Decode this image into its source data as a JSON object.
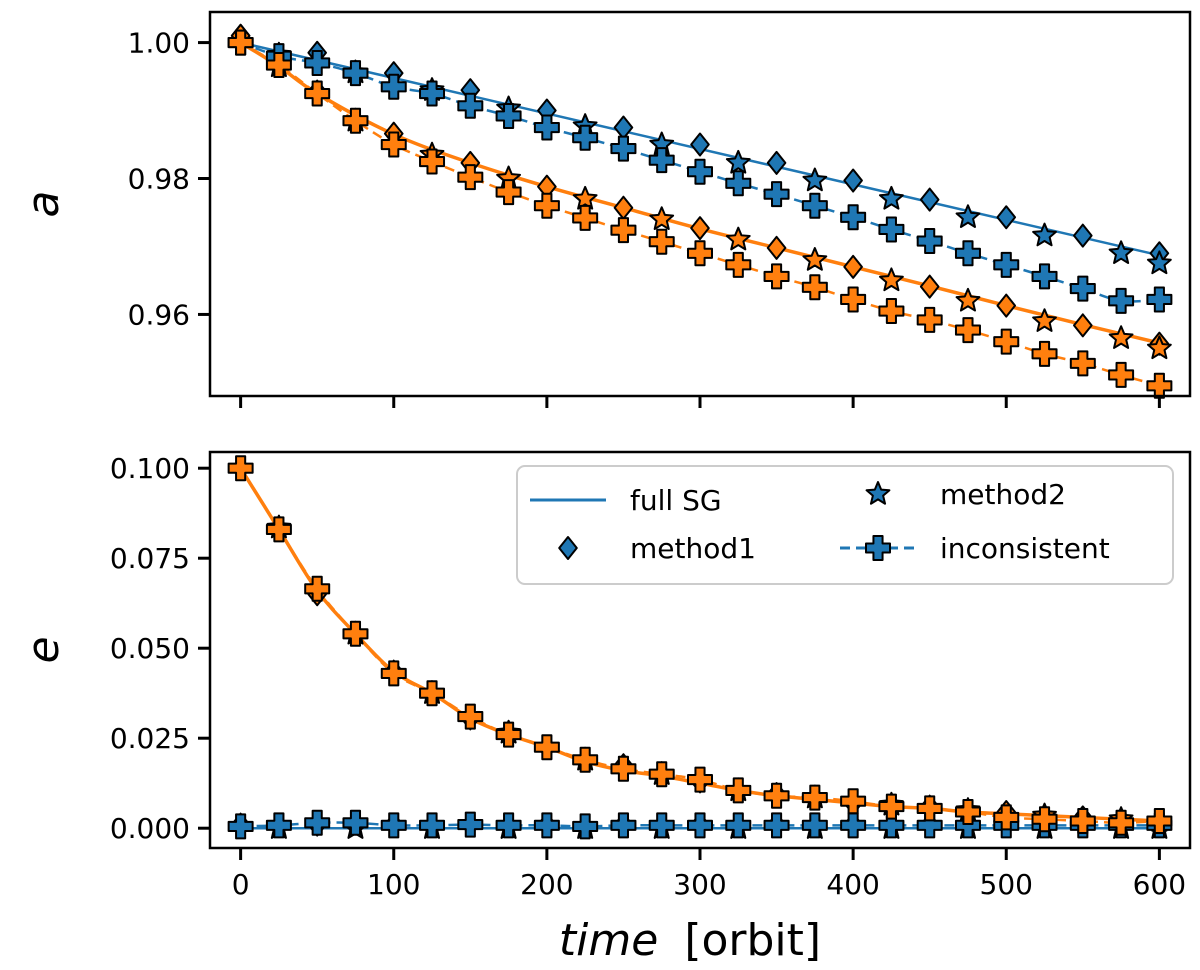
{
  "colors": {
    "blue": "#1f77b4",
    "orange": "#ff7f0e",
    "edge": "#000000"
  },
  "chart_data": [
    {
      "type": "line",
      "ylabel": "a",
      "xlim": [
        -20,
        620
      ],
      "ylim": [
        0.948,
        1.0045
      ],
      "yticks": [
        0.96,
        0.98,
        1.0
      ],
      "ytick_labels": [
        "0.96",
        "0.98",
        "1.00"
      ],
      "xticks": [
        0,
        100,
        200,
        300,
        400,
        500,
        600
      ],
      "show_xtick_labels": false,
      "series": [
        {
          "name": "full SG",
          "color": "blue",
          "style": "line",
          "x": [
            0,
            600
          ],
          "y": [
            1.0,
            0.9687
          ]
        },
        {
          "name": "full SG",
          "color": "orange",
          "style": "curve",
          "x": [
            0,
            25,
            50,
            100,
            150,
            200,
            250,
            300,
            350,
            400,
            450,
            500,
            550,
            600
          ],
          "y": [
            1.0,
            0.9965,
            0.9925,
            0.9865,
            0.9823,
            0.9788,
            0.9757,
            0.9726,
            0.9698,
            0.967,
            0.9642,
            0.9613,
            0.9585,
            0.9558
          ]
        },
        {
          "name": "method1",
          "color": "blue",
          "marker": "diamond",
          "x": [
            0,
            50,
            100,
            150,
            200,
            250,
            300,
            350,
            400,
            450,
            500,
            550,
            600
          ],
          "y": [
            1.001,
            0.9985,
            0.9955,
            0.993,
            0.99,
            0.9875,
            0.985,
            0.9823,
            0.9797,
            0.9769,
            0.9743,
            0.9716,
            0.969
          ]
        },
        {
          "name": "method2",
          "color": "blue",
          "marker": "star",
          "x": [
            25,
            75,
            125,
            175,
            225,
            275,
            325,
            375,
            425,
            475,
            525,
            575,
            600
          ],
          "y": [
            0.9982,
            0.9956,
            0.993,
            0.9903,
            0.9877,
            0.985,
            0.9823,
            0.9797,
            0.977,
            0.9743,
            0.9716,
            0.969,
            0.9675
          ]
        },
        {
          "name": "inconsistent",
          "color": "blue",
          "marker": "plus",
          "x": [
            0,
            25,
            50,
            75,
            100,
            125,
            150,
            175,
            200,
            225,
            250,
            275,
            300,
            325,
            350,
            375,
            400,
            425,
            450,
            475,
            500,
            525,
            550,
            575,
            600
          ],
          "y": [
            1.0,
            0.998,
            0.997,
            0.9955,
            0.9935,
            0.9925,
            0.9907,
            0.9892,
            0.9875,
            0.986,
            0.9844,
            0.9827,
            0.981,
            0.9793,
            0.9777,
            0.976,
            0.9743,
            0.9725,
            0.9708,
            0.969,
            0.9673,
            0.9656,
            0.9638,
            0.962,
            0.9622
          ]
        },
        {
          "name": "method1",
          "color": "orange",
          "marker": "diamond",
          "x": [
            0,
            50,
            100,
            150,
            200,
            250,
            300,
            350,
            400,
            450,
            500,
            550,
            600
          ],
          "y": [
            1.001,
            0.9928,
            0.9866,
            0.9823,
            0.9788,
            0.9757,
            0.9727,
            0.9698,
            0.967,
            0.9641,
            0.9613,
            0.9584,
            0.9557
          ]
        },
        {
          "name": "method2",
          "color": "orange",
          "marker": "star",
          "x": [
            25,
            75,
            125,
            175,
            225,
            275,
            325,
            375,
            425,
            475,
            525,
            575,
            600
          ],
          "y": [
            0.9965,
            0.9885,
            0.9835,
            0.98,
            0.977,
            0.974,
            0.971,
            0.968,
            0.965,
            0.962,
            0.959,
            0.9565,
            0.955
          ]
        },
        {
          "name": "inconsistent",
          "color": "orange",
          "marker": "plus",
          "x": [
            0,
            25,
            50,
            75,
            100,
            125,
            150,
            175,
            200,
            225,
            250,
            275,
            300,
            325,
            350,
            375,
            400,
            425,
            450,
            475,
            500,
            525,
            550,
            575,
            600
          ],
          "y": [
            1.0,
            0.9967,
            0.9925,
            0.9885,
            0.985,
            0.9825,
            0.9802,
            0.978,
            0.976,
            0.9742,
            0.9724,
            0.9707,
            0.969,
            0.9673,
            0.9656,
            0.964,
            0.9622,
            0.9605,
            0.9592,
            0.9577,
            0.956,
            0.9542,
            0.9528,
            0.9511,
            0.9495
          ]
        }
      ]
    },
    {
      "type": "line",
      "ylabel": "e",
      "xlabel_italic": "time",
      "xlabel_unit": "[orbit]",
      "xlim": [
        -20,
        620
      ],
      "ylim": [
        -0.0055,
        0.1045
      ],
      "yticks": [
        0.0,
        0.025,
        0.05,
        0.075,
        0.1
      ],
      "ytick_labels": [
        "0.000",
        "0.025",
        "0.050",
        "0.075",
        "0.100"
      ],
      "xticks": [
        0,
        100,
        200,
        300,
        400,
        500,
        600
      ],
      "xtick_labels": [
        "0",
        "100",
        "200",
        "300",
        "400",
        "500",
        "600"
      ],
      "legend": {
        "placement": "upper-right",
        "entries": [
          "full SG",
          "method1",
          "method2",
          "inconsistent"
        ]
      },
      "series": [
        {
          "name": "full SG",
          "color": "blue",
          "style": "line",
          "x": [
            0,
            600
          ],
          "y": [
            0.0,
            0.0
          ]
        },
        {
          "name": "full SG",
          "color": "orange",
          "style": "curve",
          "x": [
            0,
            25,
            50,
            75,
            100,
            125,
            150,
            175,
            200,
            225,
            250,
            275,
            300,
            325,
            350,
            375,
            400,
            425,
            450,
            475,
            500,
            525,
            550,
            575,
            600
          ],
          "y": [
            0.1,
            0.083,
            0.066,
            0.054,
            0.0435,
            0.0375,
            0.0305,
            0.026,
            0.0225,
            0.0185,
            0.016,
            0.0145,
            0.0125,
            0.0105,
            0.009,
            0.008,
            0.007,
            0.006,
            0.0055,
            0.0045,
            0.004,
            0.0035,
            0.003,
            0.0025,
            0.002
          ]
        },
        {
          "name": "method1",
          "color": "blue",
          "marker": "diamond",
          "x": [
            0,
            50,
            100,
            150,
            200,
            250,
            300,
            350,
            400,
            450,
            500,
            550,
            600
          ],
          "y": [
            0.001,
            0.001,
            0.001,
            0.001,
            0.001,
            0.001,
            0.001,
            0.001,
            0.001,
            0.001,
            0.001,
            0.001,
            0.001
          ]
        },
        {
          "name": "method2",
          "color": "blue",
          "marker": "star",
          "x": [
            25,
            75,
            125,
            175,
            225,
            275,
            325,
            375,
            425,
            475,
            525,
            575,
            600
          ],
          "y": [
            0.0,
            0.0,
            0.0,
            0.0,
            0.0,
            0.0,
            0.0,
            0.0,
            0.0,
            0.0,
            0.0,
            0.0,
            0.0
          ]
        },
        {
          "name": "inconsistent",
          "color": "blue",
          "marker": "plus",
          "x": [
            0,
            25,
            50,
            75,
            100,
            125,
            150,
            175,
            200,
            225,
            250,
            275,
            300,
            325,
            350,
            375,
            400,
            425,
            450,
            475,
            500,
            525,
            550,
            575,
            600
          ],
          "y": [
            0.0005,
            0.0008,
            0.0015,
            0.0015,
            0.0008,
            0.0008,
            0.001,
            0.0008,
            0.0008,
            0.0005,
            0.0008,
            0.0008,
            0.0008,
            0.0008,
            0.0008,
            0.0008,
            0.0008,
            0.0008,
            0.0008,
            0.0008,
            0.0008,
            0.0008,
            0.0008,
            0.0008,
            0.0008
          ]
        },
        {
          "name": "method1",
          "color": "orange",
          "marker": "diamond",
          "x": [
            0,
            50,
            100,
            150,
            200,
            250,
            300,
            350,
            400,
            450,
            500,
            550,
            600
          ],
          "y": [
            0.1,
            0.065,
            0.0435,
            0.0305,
            0.0225,
            0.0175,
            0.013,
            0.0095,
            0.007,
            0.006,
            0.0045,
            0.003,
            0.002
          ]
        },
        {
          "name": "method2",
          "color": "orange",
          "marker": "star",
          "x": [
            25,
            75,
            125,
            175,
            225,
            275,
            325,
            375,
            425,
            475,
            525,
            575,
            600
          ],
          "y": [
            0.0835,
            0.054,
            0.0375,
            0.0265,
            0.019,
            0.015,
            0.0105,
            0.0085,
            0.0065,
            0.005,
            0.0035,
            0.0025,
            0.002
          ]
        },
        {
          "name": "inconsistent",
          "color": "orange",
          "marker": "plus",
          "x": [
            0,
            25,
            50,
            75,
            100,
            125,
            150,
            175,
            200,
            225,
            250,
            275,
            300,
            325,
            350,
            375,
            400,
            425,
            450,
            475,
            500,
            525,
            550,
            575,
            600
          ],
          "y": [
            0.1,
            0.083,
            0.0665,
            0.054,
            0.043,
            0.0375,
            0.031,
            0.026,
            0.0225,
            0.019,
            0.0165,
            0.015,
            0.0135,
            0.0105,
            0.009,
            0.0085,
            0.0075,
            0.006,
            0.0055,
            0.0045,
            0.003,
            0.0025,
            0.002,
            0.0015,
            0.002
          ]
        }
      ]
    }
  ]
}
